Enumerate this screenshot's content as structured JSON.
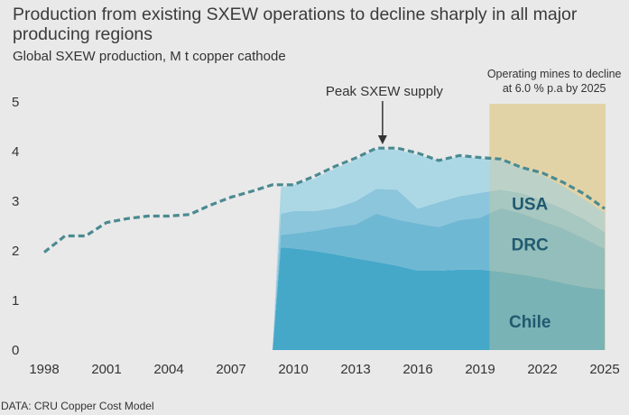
{
  "title": "Production from existing SXEW operations to decline sharply in all major producing regions",
  "subtitle": "Global SXEW production, M t copper cathode",
  "source": "DATA: CRU Copper Cost Model",
  "colors": {
    "background": "#e9e9e9",
    "total_line": "#4a8a91",
    "chile": "#45a8c9",
    "drc": "#6fb8d3",
    "usa": "#8cc6dc",
    "other": "#acd8e6",
    "forecast_shade": "#e6d9b4",
    "label_text": "#215a70"
  },
  "chart_data": {
    "type": "area",
    "title": "Production from existing SXEW operations to decline sharply in all major producing regions",
    "subtitle": "Global SXEW production, M t copper cathode",
    "xlim": [
      1997.5,
      2025.3
    ],
    "ylim": [
      0,
      5
    ],
    "x_ticks": [
      1998,
      2001,
      2004,
      2007,
      2010,
      2013,
      2016,
      2019,
      2022,
      2025
    ],
    "y_ticks": [
      0,
      1,
      2,
      3,
      4,
      5
    ],
    "grid": false,
    "total_line": {
      "style": "dashed",
      "x": [
        1998,
        1999,
        2000,
        2001,
        2002,
        2003,
        2004,
        2005,
        2006,
        2007,
        2008,
        2009,
        2010,
        2011,
        2012,
        2013,
        2014,
        2015,
        2016,
        2017,
        2018,
        2019,
        2020,
        2021,
        2022,
        2023,
        2024,
        2025
      ],
      "y": [
        1.97,
        2.3,
        2.3,
        2.57,
        2.65,
        2.7,
        2.7,
        2.73,
        2.92,
        3.08,
        3.2,
        3.33,
        3.33,
        3.5,
        3.7,
        3.87,
        4.07,
        4.07,
        3.97,
        3.82,
        3.92,
        3.88,
        3.85,
        3.68,
        3.57,
        3.38,
        3.15,
        2.85
      ]
    },
    "stacked_x": [
      2009,
      2009.4,
      2010,
      2011,
      2012,
      2013,
      2014,
      2015,
      2016,
      2017,
      2018,
      2019,
      2020,
      2021,
      2022,
      2023,
      2024,
      2025
    ],
    "series": [
      {
        "name": "Chile",
        "values": [
          0,
          2.07,
          2.05,
          2.0,
          1.93,
          1.85,
          1.78,
          1.7,
          1.6,
          1.6,
          1.62,
          1.62,
          1.58,
          1.52,
          1.45,
          1.35,
          1.27,
          1.22
        ]
      },
      {
        "name": "DRC",
        "values": [
          0,
          0.25,
          0.3,
          0.4,
          0.55,
          0.68,
          0.97,
          0.93,
          0.95,
          0.88,
          1.0,
          1.05,
          1.28,
          1.23,
          1.15,
          1.1,
          0.98,
          0.82
        ]
      },
      {
        "name": "USA",
        "values": [
          0,
          0.43,
          0.45,
          0.4,
          0.38,
          0.47,
          0.5,
          0.6,
          0.3,
          0.5,
          0.48,
          0.5,
          0.37,
          0.41,
          0.42,
          0.4,
          0.39,
          0.33
        ]
      },
      {
        "name": "",
        "values": [
          0,
          0.53,
          0.53,
          0.65,
          0.8,
          0.83,
          0.8,
          0.8,
          1.08,
          0.84,
          0.8,
          0.7,
          0.6,
          0.52,
          0.5,
          0.45,
          0.4,
          0.4
        ]
      }
    ],
    "forecast_period": {
      "x_start": 2019.45,
      "x_end": 2025,
      "label": [
        "Operating mines to decline",
        "at 6.0 % p.a by 2025"
      ]
    },
    "annotations": [
      {
        "text": "Peak SXEW supply",
        "x": 2014.3,
        "y": 4.07,
        "arrow": true
      },
      {
        "text": "USA",
        "series": "USA"
      },
      {
        "text": "DRC",
        "series": "DRC"
      },
      {
        "text": "Chile",
        "series": "Chile"
      }
    ]
  }
}
